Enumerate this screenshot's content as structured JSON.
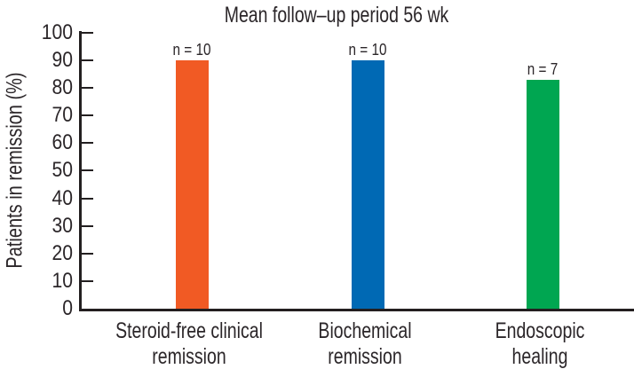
{
  "chart_data": {
    "type": "bar",
    "title": "Mean follow–up period 56 wk",
    "ylabel": "Patients in remission (%)",
    "xlabel": "",
    "ylim": [
      0,
      100
    ],
    "yticks": [
      0,
      10,
      20,
      30,
      40,
      50,
      60,
      70,
      80,
      90,
      100
    ],
    "grid": false,
    "legend_position": "none",
    "categories": [
      "Steroid-free clinical remission",
      "Biochemical remission",
      "Endoscopic healing"
    ],
    "category_label_lines": [
      [
        "Steroid-free clinical",
        "remission"
      ],
      [
        "Biochemical",
        "remission"
      ],
      [
        "Endoscopic",
        "healing"
      ]
    ],
    "values": [
      90,
      90,
      83
    ],
    "bar_labels": [
      "n = 10",
      "n = 10",
      "n = 7"
    ],
    "bar_colors": [
      "#f15a24",
      "#0069b4",
      "#00a651"
    ],
    "axis_color": "#231f20",
    "text_color": "#2b2629",
    "background_color": "#ffffff"
  }
}
